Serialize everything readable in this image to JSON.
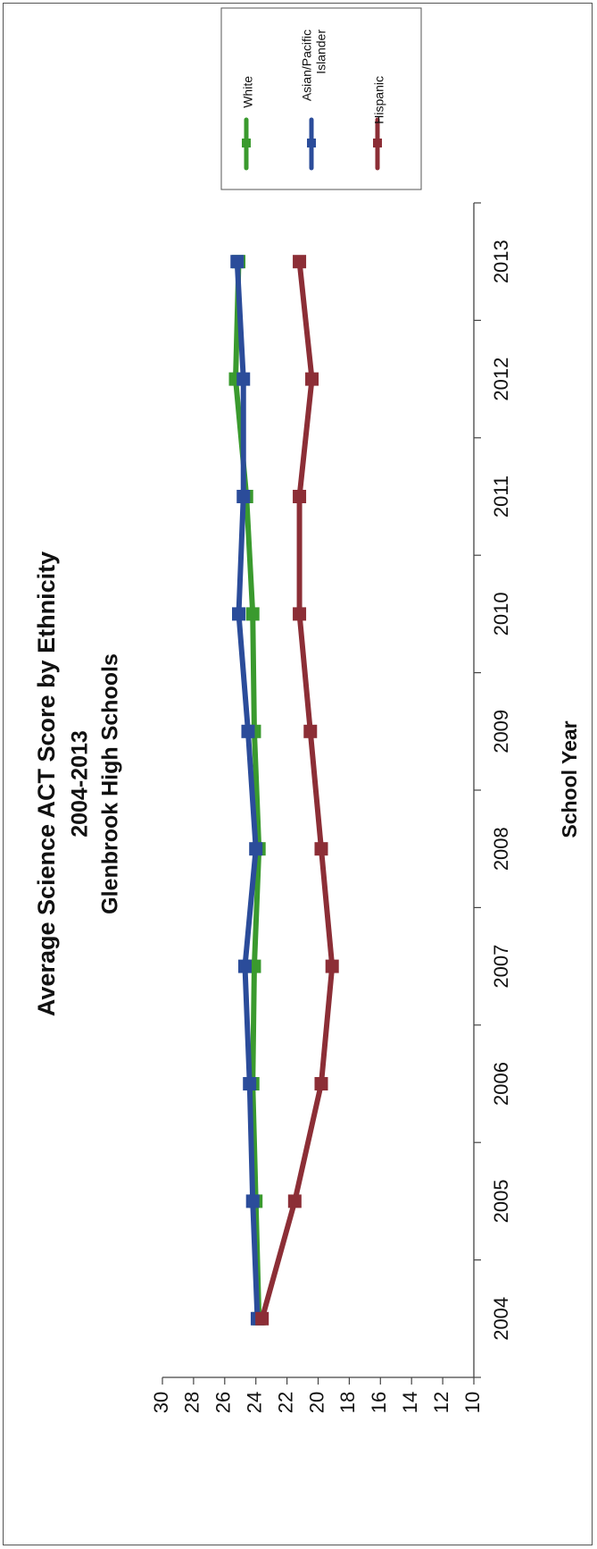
{
  "chart_data": {
    "type": "line",
    "title": [
      "Average Science ACT Score by Ethnicity",
      "2004-2013",
      "Glenbrook High Schools"
    ],
    "xlabel": "School Year",
    "ylabel": "",
    "categories": [
      "2004",
      "2005",
      "2006",
      "2007",
      "2008",
      "2009",
      "2010",
      "2011",
      "2012",
      "2013"
    ],
    "ylim": [
      10,
      30
    ],
    "yticks": [
      "10",
      "12",
      "14",
      "16",
      "18",
      "20",
      "22",
      "24",
      "26",
      "28",
      "30"
    ],
    "grid": false,
    "legend_position": "top-right",
    "orientation": "rotated 90 degrees clockwise",
    "series": [
      {
        "name": "White",
        "color": "#3a9a2e",
        "values": [
          23.8,
          24.0,
          24.2,
          24.1,
          23.8,
          24.1,
          24.2,
          24.6,
          25.3,
          25.1
        ]
      },
      {
        "name": "Asian/Pacific Islander",
        "color": "#2b4c9a",
        "values": [
          23.9,
          24.2,
          24.4,
          24.7,
          24.0,
          24.5,
          25.1,
          24.8,
          24.8,
          25.2
        ]
      },
      {
        "name": "Hispanic",
        "color": "#8c2e36",
        "values": [
          23.6,
          21.5,
          19.8,
          19.1,
          19.8,
          20.5,
          21.2,
          21.2,
          20.4,
          21.2
        ]
      }
    ]
  }
}
